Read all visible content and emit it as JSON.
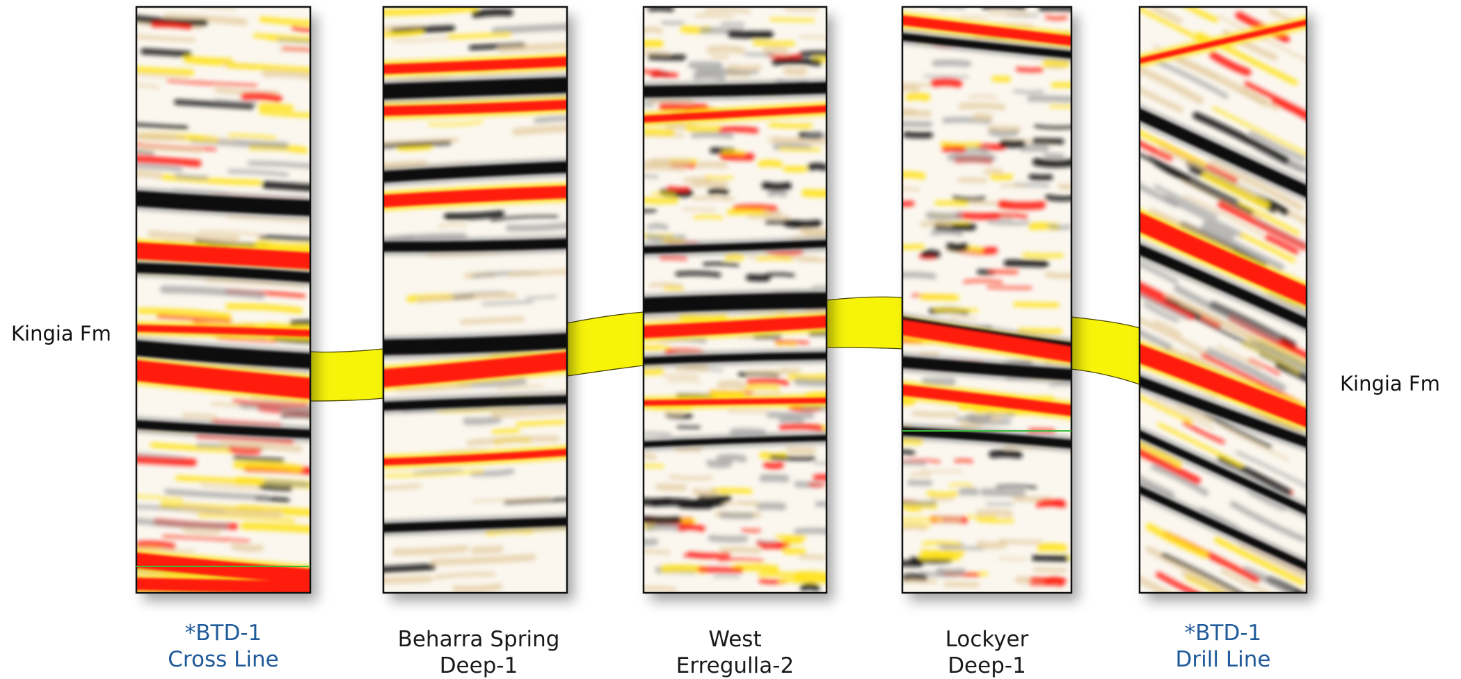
{
  "colors": {
    "positive_strong": "#ff1a0a",
    "positive_mid": "#ffe21a",
    "positive_weak": "#e2c99a",
    "negative": "#0d0d0d",
    "negative_weak": "#9a9a9a",
    "horizon_fill": "#f7f40a",
    "marker_line": "#3dbb3d",
    "label_default": "#1a1a1a",
    "label_highlight": "#1f5a9a"
  },
  "formation_label": "Kingia Fm",
  "panels": [
    {
      "id": "btd1-cross",
      "label_line1": "*BTD-1",
      "label_line2": "Cross Line",
      "highlight": true,
      "pattern": "flat-dip"
    },
    {
      "id": "beharra",
      "label_line1": "Beharra Spring",
      "label_line2": "Deep-1",
      "highlight": false,
      "pattern": "smooth"
    },
    {
      "id": "west-erregulla",
      "label_line1": "West",
      "label_line2": "Erregulla-2",
      "highlight": false,
      "pattern": "busy"
    },
    {
      "id": "lockyer",
      "label_line1": "Lockyer",
      "label_line2": "Deep-1",
      "highlight": false,
      "pattern": "chaotic"
    },
    {
      "id": "btd1-drill",
      "label_line1": "*BTD-1",
      "label_line2": "Drill Line",
      "highlight": true,
      "pattern": "steep"
    }
  ]
}
